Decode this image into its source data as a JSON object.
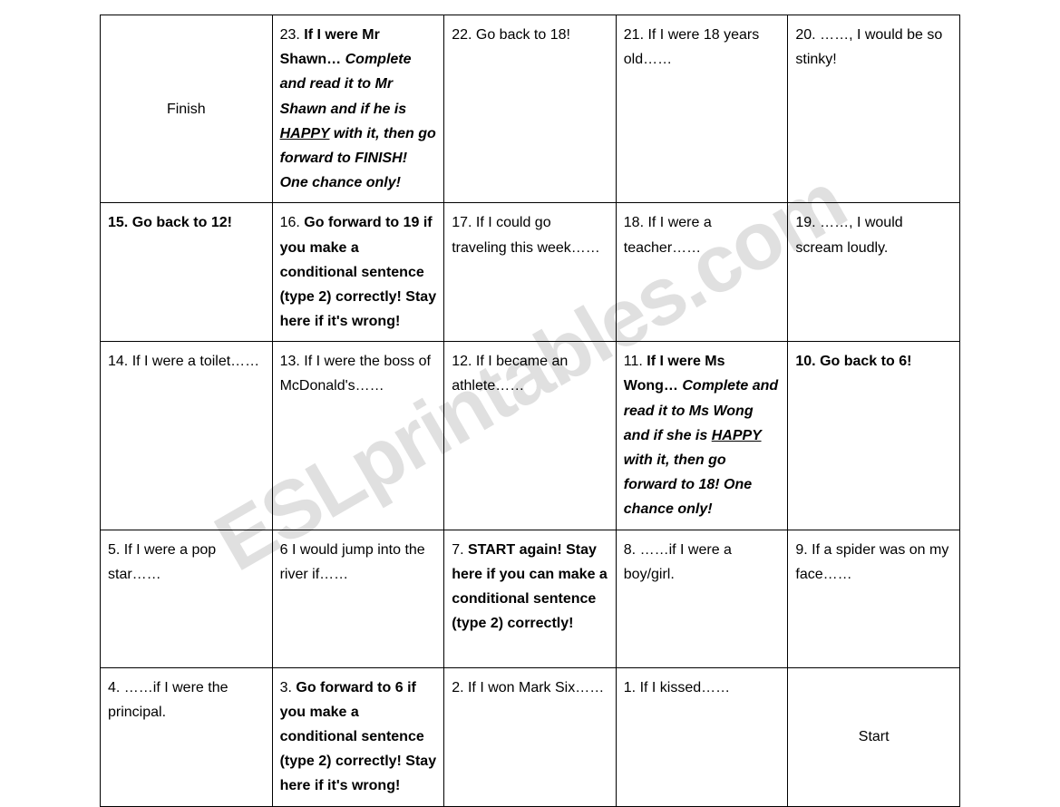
{
  "watermark": "ESLprintables.com",
  "board": {
    "finish_label": "Finish",
    "start_label": "Start",
    "cells": {
      "c23": {
        "prefix": "23. ",
        "lead": "If I were Mr Shawn…",
        "body1": "Complete and read it to Mr Shawn and if he is ",
        "happy": "HAPPY",
        "body2": " with it, then go forward to FINISH! One chance only!"
      },
      "c22": {
        "text": "22. Go back to 18!"
      },
      "c21": {
        "text": "21. If I were 18 years old……"
      },
      "c20": {
        "text": "20. ……, I would be so stinky!"
      },
      "c15": {
        "text": "15. Go back to 12!"
      },
      "c16": {
        "prefix": "16. ",
        "body": "Go forward to 19 if you make a conditional sentence (type 2) correctly! Stay here if it's wrong!"
      },
      "c17": {
        "text": "17. If I could go traveling this week……"
      },
      "c18": {
        "text": "18. If I were a teacher……"
      },
      "c19": {
        "text": "19. ……, I would scream loudly."
      },
      "c14": {
        "text": "14. If I were a toilet……"
      },
      "c13": {
        "text": "13. If I were the boss of McDonald's……"
      },
      "c12": {
        "text": "12. If I became an athlete……"
      },
      "c11": {
        "prefix": "11. ",
        "lead": "If I were Ms Wong…",
        "body1": "Complete and read it to Ms Wong and if she is ",
        "happy": "HAPPY",
        "body2": " with it, then go forward to 18! One chance only!"
      },
      "c10": {
        "text": "10. Go back to 6!"
      },
      "c5": {
        "text": "5. If I were a pop star……"
      },
      "c6": {
        "text": "6 I would jump into the river if……"
      },
      "c7": {
        "prefix": "7. ",
        "body": "START again! Stay here if you can make a conditional sentence (type 2) correctly!"
      },
      "c8": {
        "text": "8. ……if I were a boy/girl."
      },
      "c9": {
        "text": "9. If a spider was on my face……"
      },
      "c4": {
        "text": "4. ……if I were the principal."
      },
      "c3": {
        "prefix": "3. ",
        "body": "Go forward to 6 if you make a conditional sentence (type 2) correctly! Stay here if it's wrong!"
      },
      "c2": {
        "text": "2. If I won Mark Six……"
      },
      "c1": {
        "text": "1. If I kissed……"
      }
    }
  }
}
